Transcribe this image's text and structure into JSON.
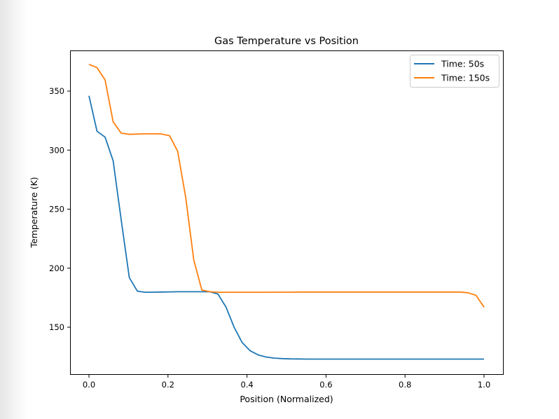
{
  "chart_data": {
    "type": "line",
    "title": "Gas Temperature vs Position",
    "xlabel": "Position (Normalized)",
    "ylabel": "Temperature (K)",
    "xlim": [
      -0.05,
      1.05
    ],
    "ylim": [
      110,
      384
    ],
    "xticks": [
      0.0,
      0.2,
      0.4,
      0.6,
      0.8,
      1.0
    ],
    "xtick_labels": [
      "0.0",
      "0.2",
      "0.4",
      "0.6",
      "0.8",
      "1.0"
    ],
    "yticks": [
      150,
      200,
      250,
      300,
      350
    ],
    "ytick_labels": [
      "150",
      "200",
      "250",
      "300",
      "350"
    ],
    "grid": false,
    "legend_position": "top-right",
    "x": "50 evenly spaced points from 0 to 1",
    "series": [
      {
        "name": "Time: 50s",
        "color": "#1f77b4",
        "values": [
          346,
          316,
          311,
          291,
          241,
          192,
          180.5,
          179.6,
          179.7,
          179.8,
          179.9,
          180,
          180,
          180,
          180,
          180,
          178,
          167,
          150,
          137,
          130,
          126.5,
          124.7,
          123.8,
          123.4,
          123.2,
          123.1,
          123,
          123,
          123,
          123,
          123,
          123,
          123,
          123,
          123,
          123,
          123,
          123,
          123,
          123,
          123,
          123,
          123,
          123,
          123,
          123,
          123,
          123,
          123
        ]
      },
      {
        "name": "Time: 150s",
        "color": "#ff7f0e",
        "values": [
          372.7,
          369.8,
          359.5,
          324,
          314.4,
          313.4,
          313.6,
          313.8,
          313.8,
          313.7,
          312.2,
          299,
          260,
          207,
          181.5,
          180,
          179.6,
          179.6,
          179.6,
          179.6,
          179.6,
          179.6,
          179.6,
          179.7,
          179.7,
          179.7,
          179.8,
          179.8,
          179.8,
          179.8,
          179.8,
          179.8,
          179.8,
          179.8,
          179.8,
          179.8,
          179.8,
          179.8,
          179.8,
          179.8,
          179.8,
          179.8,
          179.8,
          179.8,
          179.8,
          179.8,
          179.8,
          179.2,
          177,
          167
        ]
      }
    ]
  }
}
